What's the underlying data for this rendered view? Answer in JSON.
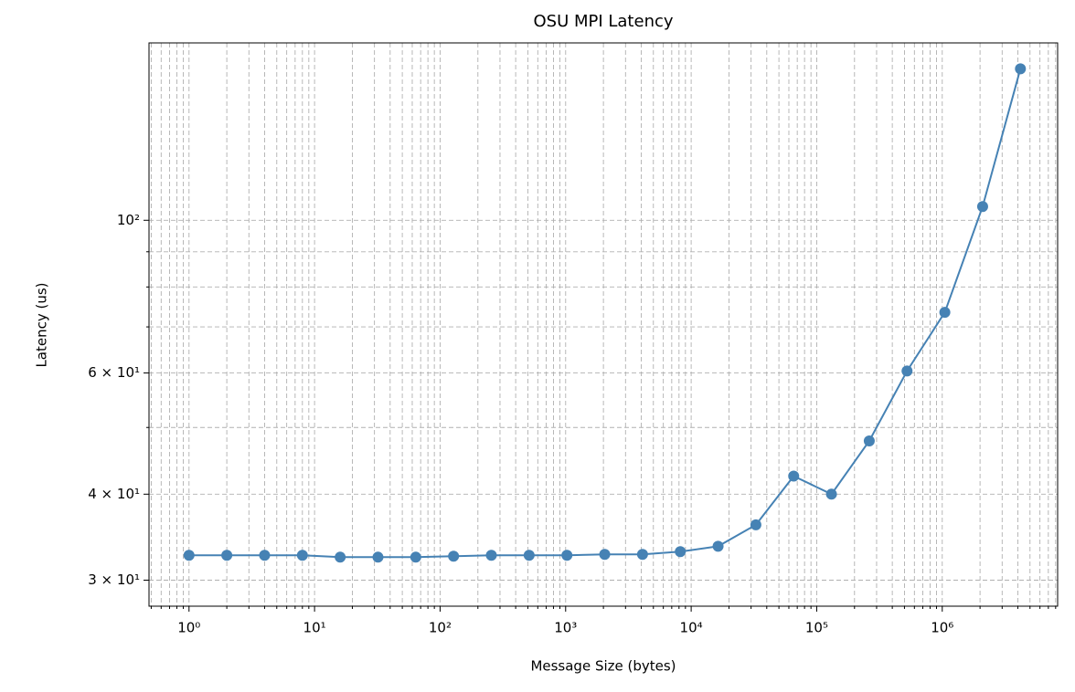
{
  "chart_data": {
    "type": "line",
    "title": "OSU MPI Latency",
    "x_label": "Message Size (bytes)",
    "y_label": "Latency (us)",
    "xscale": "log",
    "yscale": "log",
    "grid": true,
    "x": [
      1,
      2,
      4,
      8,
      16,
      32,
      64,
      128,
      256,
      512,
      1024,
      2048,
      4096,
      8192,
      16384,
      32768,
      65536,
      131072,
      262144,
      524288,
      1048576,
      2097152,
      4194304
    ],
    "series": [
      {
        "color": "#4682b4",
        "values": [
          32.6,
          32.6,
          32.6,
          32.6,
          32.4,
          32.4,
          32.4,
          32.5,
          32.6,
          32.6,
          32.6,
          32.7,
          32.7,
          33.0,
          33.6,
          36.1,
          42.5,
          40.0,
          47.8,
          60.4,
          73.5,
          104.7,
          166.0
        ]
      }
    ],
    "xlim": [
      0.48,
      8300000
    ],
    "ylim": [
      27.5,
      181
    ],
    "xticks": [
      {
        "value": 1,
        "label": "10⁰"
      },
      {
        "value": 10,
        "label": "10¹"
      },
      {
        "value": 100,
        "label": "10²"
      },
      {
        "value": 1000,
        "label": "10³"
      },
      {
        "value": 10000,
        "label": "10⁴"
      },
      {
        "value": 100000,
        "label": "10⁵"
      },
      {
        "value": 1000000,
        "label": "10⁶"
      }
    ],
    "xminorticks": [
      0.5,
      0.6,
      0.7,
      0.8,
      0.9,
      2,
      3,
      4,
      5,
      6,
      7,
      8,
      9,
      20,
      30,
      40,
      50,
      60,
      70,
      80,
      90,
      200,
      300,
      400,
      500,
      600,
      700,
      800,
      900,
      2000,
      3000,
      4000,
      5000,
      6000,
      7000,
      8000,
      9000,
      20000,
      30000,
      40000,
      50000,
      60000,
      70000,
      80000,
      90000,
      200000,
      300000,
      400000,
      500000,
      600000,
      700000,
      800000,
      900000,
      2000000,
      3000000,
      4000000,
      5000000,
      6000000,
      7000000,
      8000000
    ],
    "yticks": [
      {
        "value": 30,
        "label": "3 × 10¹"
      },
      {
        "value": 40,
        "label": "4 × 10¹"
      },
      {
        "value": 60,
        "label": "6 × 10¹"
      },
      {
        "value": 100,
        "label": "10²"
      }
    ],
    "yminorticks": [
      50,
      70,
      80,
      90
    ]
  }
}
